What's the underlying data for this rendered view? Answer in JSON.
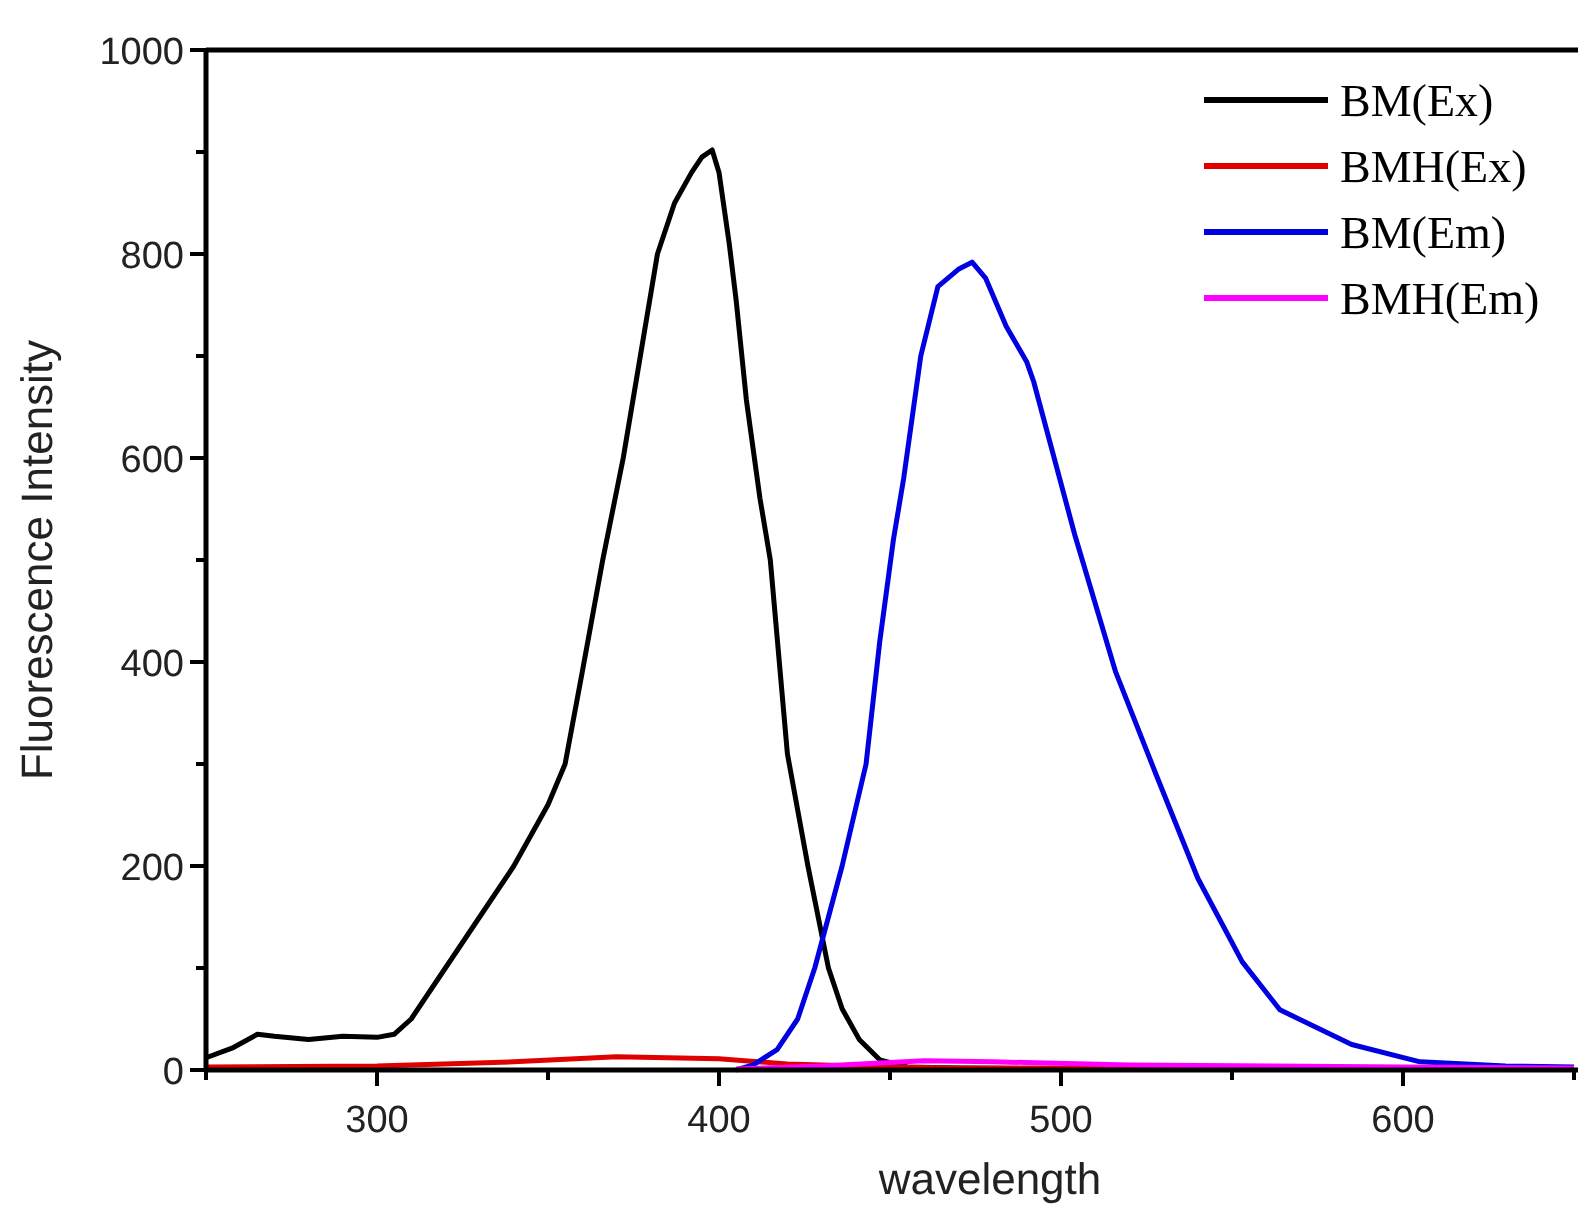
{
  "chart_data": {
    "type": "line",
    "xlabel": "wavelength",
    "ylabel": "Fluorescence Intensity",
    "xlim": [
      250,
      650
    ],
    "ylim": [
      0,
      1000
    ],
    "xticks": [
      {
        "value": 250,
        "label": null
      },
      300,
      {
        "value": 350,
        "label": null
      },
      400,
      {
        "value": 450,
        "label": null
      },
      500,
      {
        "value": 550,
        "label": null
      },
      600,
      {
        "value": 650,
        "label": null
      }
    ],
    "yticks": [
      0,
      {
        "value": 100,
        "label": null
      },
      200,
      {
        "value": 300,
        "label": null
      },
      400,
      {
        "value": 500,
        "label": null
      },
      600,
      {
        "value": 700,
        "label": null
      },
      800,
      {
        "value": 900,
        "label": null
      },
      1000
    ],
    "legend": "top right",
    "grid": false,
    "line_style": "solid",
    "series": [
      {
        "name": "BM(Ex)",
        "color": "#000000",
        "x": [
          250,
          258,
          265,
          270,
          280,
          290,
          300,
          305,
          310,
          320,
          330,
          340,
          350,
          355,
          360,
          366,
          372,
          377,
          382,
          387,
          392,
          395,
          398,
          400,
          403,
          405,
          408,
          412,
          415,
          420,
          426,
          432,
          436,
          441,
          447,
          455,
          470,
          500,
          550,
          600,
          650
        ],
        "values": [
          12,
          22,
          35,
          33,
          30,
          33,
          32,
          35,
          50,
          100,
          150,
          200,
          260,
          300,
          390,
          500,
          600,
          700,
          800,
          850,
          880,
          895,
          902,
          880,
          810,
          755,
          657,
          560,
          500,
          310,
          200,
          100,
          60,
          30,
          10,
          3,
          2,
          1,
          1,
          1,
          1
        ]
      },
      {
        "name": "BMH(Ex)",
        "color": "#e00000",
        "x": [
          250,
          300,
          340,
          370,
          400,
          420,
          450,
          470,
          650
        ],
        "values": [
          3,
          4,
          8,
          13,
          11,
          6,
          3,
          2,
          1
        ]
      },
      {
        "name": "BM(Em)",
        "color": "#0000e0",
        "x": [
          405,
          410,
          417,
          423,
          428,
          436,
          443,
          447,
          451,
          454,
          459,
          464,
          470,
          474,
          478,
          484,
          490,
          492,
          504,
          516,
          528,
          540,
          553,
          564,
          585,
          605,
          630,
          650
        ],
        "values": [
          0,
          5,
          20,
          50,
          100,
          200,
          300,
          420,
          520,
          580,
          700,
          768,
          785,
          792,
          776,
          729,
          694,
          675,
          525,
          390,
          288,
          188,
          106,
          59,
          25,
          8,
          4,
          3
        ]
      },
      {
        "name": "BMH(Em)",
        "color": "#ff00ff",
        "x": [
          405,
          430,
          460,
          480,
          520,
          600,
          650
        ],
        "values": [
          1,
          4,
          9,
          8,
          5,
          3,
          2
        ]
      }
    ]
  }
}
